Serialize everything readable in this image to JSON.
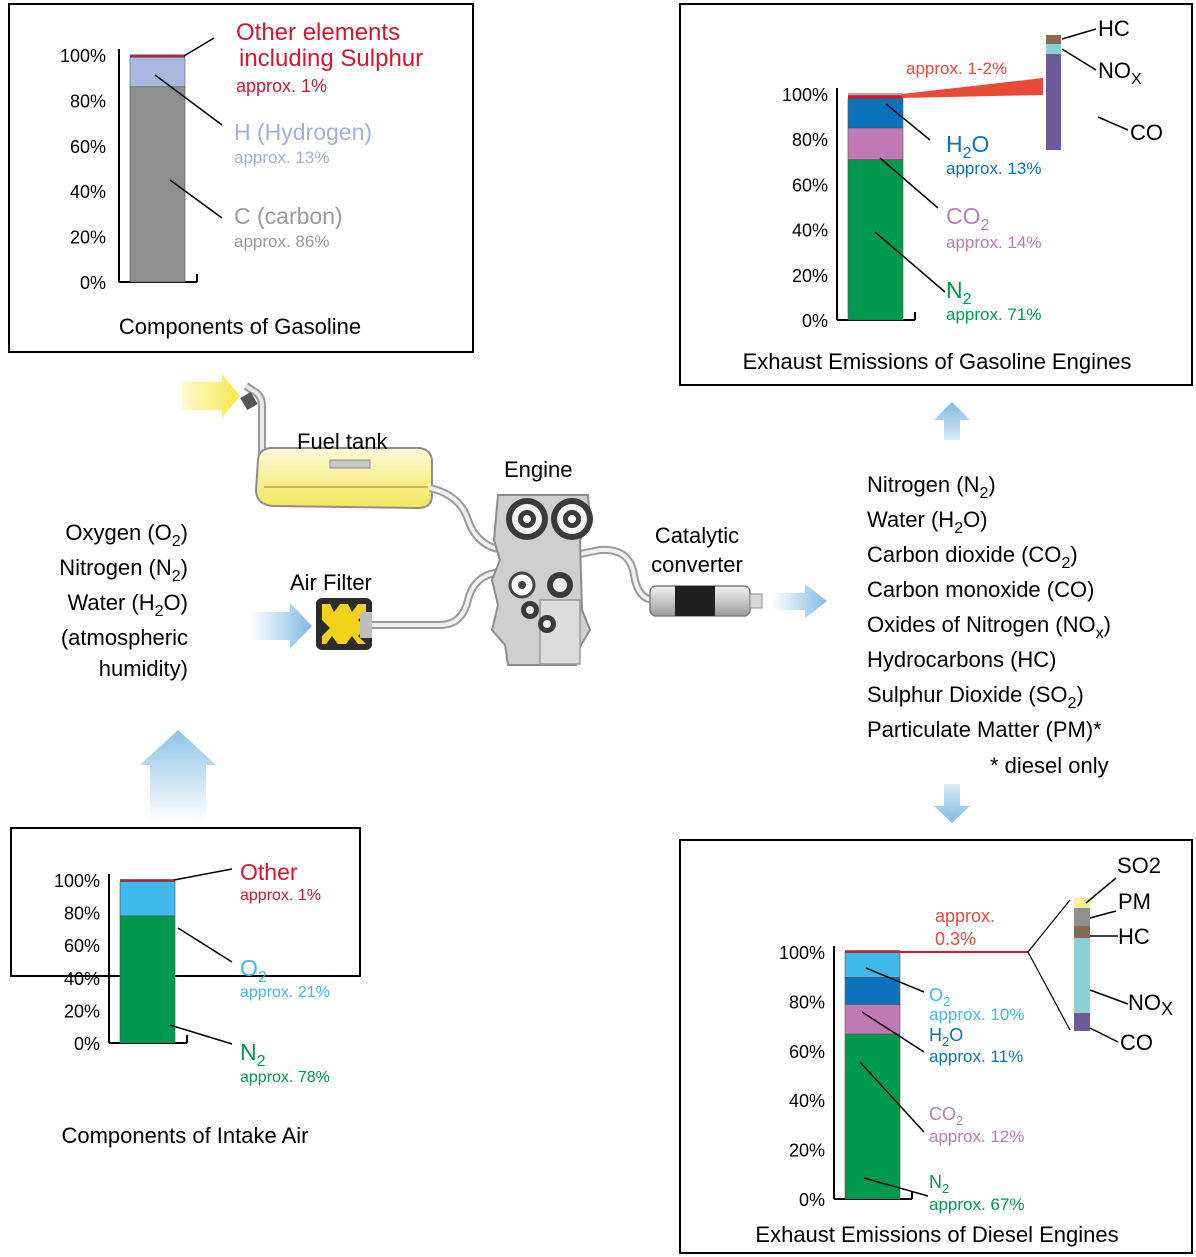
{
  "colors": {
    "carbon": "#8f8f8f",
    "hydrogen": "#a8b9e0",
    "other": "#d7152f",
    "n2": "#009a4e",
    "o2": "#3fb8ea",
    "h2o": "#0b73bb",
    "co2": "#c07ab3",
    "approx_red": "#e84a38",
    "carbon_text": "#9a9a9a",
    "hydrogen_text": "#9fb2da",
    "hc": "#8b6b4f",
    "nox": "#8ccfd4",
    "co": "#6f5a98",
    "so2": "#f6ef9a",
    "pm": "#8f8f8f",
    "arrow_blue": "#8cc3e6",
    "yellow": "#f5e84d"
  },
  "y_ticks": [
    "0%",
    "20%",
    "40%",
    "60%",
    "80%",
    "100%"
  ],
  "chart_data": [
    {
      "type": "bar",
      "title": "Components of Gasoline",
      "ylim": [
        0,
        100
      ],
      "segments": [
        {
          "label": "C (carbon)",
          "note": "approx. 86%",
          "value": 86,
          "color_key": "carbon"
        },
        {
          "label": "H (Hydrogen)",
          "note": "approx. 13%",
          "value": 13,
          "color_key": "hydrogen"
        },
        {
          "label": "Other elements including Sulphur",
          "note": "approx. 1%",
          "value": 1,
          "color_key": "other"
        }
      ]
    },
    {
      "type": "bar",
      "title": "Exhaust Emissions of Gasoline Engines",
      "ylim": [
        0,
        100
      ],
      "segments": [
        {
          "label": "N2",
          "note": "approx. 71%",
          "value": 71,
          "color_key": "n2"
        },
        {
          "label": "CO2",
          "note": "approx. 14%",
          "value": 14,
          "color_key": "co2"
        },
        {
          "label": "H2O",
          "note": "approx. 13%",
          "value": 13,
          "color_key": "h2o"
        },
        {
          "label": "approx. 1-2%",
          "value": 1.5,
          "color_key": "other"
        }
      ],
      "breakdown": [
        {
          "label": "CO",
          "color_key": "co"
        },
        {
          "label": "NOx",
          "color_key": "nox"
        },
        {
          "label": "HC",
          "color_key": "hc"
        }
      ]
    },
    {
      "type": "bar",
      "title": "Components of Intake Air",
      "ylim": [
        0,
        100
      ],
      "segments": [
        {
          "label": "N2",
          "note": "approx. 78%",
          "value": 78,
          "color_key": "n2"
        },
        {
          "label": "O2",
          "note": "approx. 21%",
          "value": 21,
          "color_key": "o2"
        },
        {
          "label": "Other",
          "note": "approx. 1%",
          "value": 1,
          "color_key": "other"
        }
      ]
    },
    {
      "type": "bar",
      "title": "Exhaust Emissions of Diesel Engines",
      "ylim": [
        0,
        100
      ],
      "segments": [
        {
          "label": "N2",
          "note": "approx. 67%",
          "value": 67,
          "color_key": "n2"
        },
        {
          "label": "CO2",
          "note": "approx. 12%",
          "value": 12,
          "color_key": "co2"
        },
        {
          "label": "H2O",
          "note": "approx. 11%",
          "value": 11,
          "color_key": "h2o"
        },
        {
          "label": "O2",
          "note": "approx. 10%",
          "value": 10,
          "color_key": "o2"
        },
        {
          "label": "approx. 0.3%",
          "value": 0.3,
          "color_key": "other"
        }
      ],
      "breakdown": [
        {
          "label": "CO",
          "color_key": "co"
        },
        {
          "label": "NOx",
          "color_key": "nox"
        },
        {
          "label": "HC",
          "color_key": "hc"
        },
        {
          "label": "PM",
          "color_key": "pm"
        },
        {
          "label": "SO2",
          "color_key": "so2"
        }
      ]
    }
  ],
  "diagram": {
    "fuel_tank": "Fuel tank",
    "engine": "Engine",
    "air_filter": "Air Filter",
    "catalytic_1": "Catalytic",
    "catalytic_2": "converter"
  },
  "intake_list": [
    "Oxygen (O2)",
    "Nitrogen (N2)",
    "Water (H2O)",
    "(atmospheric",
    "humidity)"
  ],
  "exhaust_list": [
    "Nitrogen (N2)",
    "Water (H2O)",
    "Carbon dioxide (CO2)",
    "Carbon monoxide (CO)",
    "Oxides of Nitrogen (NOx)",
    "Hydrocarbons (HC)",
    "Sulphur Dioxide (SO2)",
    "Particulate Matter (PM)*",
    "* diesel only"
  ],
  "text": {
    "g_other_1": "Other elements",
    "g_other_2": "including Sulphur",
    "g_other_note": "approx. 1%",
    "g_h": "H (Hydrogen)",
    "g_h_note": "approx. 13%",
    "g_c": "C (carbon)",
    "g_c_note": "approx. 86%",
    "ge_approx": "approx. 1-2%",
    "ge_h2o": "H",
    "ge_h2o_sub": "2",
    "ge_h2o_end": "O",
    "ge_h2o_note": "approx. 13%",
    "ge_co2": "CO",
    "ge_co2_sub": "2",
    "ge_co2_note": "approx. 14%",
    "ge_n2": "N",
    "ge_n2_sub": "2",
    "ge_n2_note": "approx. 71%",
    "ge_hc": "HC",
    "ge_nox": "NO",
    "ge_nox_sub": "X",
    "ge_co": "CO",
    "ia_other": "Other",
    "ia_other_note": "approx. 1%",
    "ia_o2": "O",
    "ia_o2_sub": "2",
    "ia_o2_note": "approx. 21%",
    "ia_n2": "N",
    "ia_n2_sub": "2",
    "ia_n2_note": "approx. 78%",
    "de_approx_1": "approx.",
    "de_approx_2": "0.3%",
    "de_o2": "O",
    "de_o2_sub": "2",
    "de_o2_note": "approx. 10%",
    "de_h2o": "H",
    "de_h2o_sub": "2",
    "de_h2o_end": "O",
    "de_h2o_note": "approx. 11%",
    "de_co2": "CO",
    "de_co2_sub": "2",
    "de_co2_note": "approx. 12%",
    "de_n2": "N",
    "de_n2_sub": "2",
    "de_n2_note": "approx. 67%",
    "de_so2": "SO",
    "de_so2_sub": "2",
    "de_pm": "PM",
    "de_hc": "HC",
    "de_nox": "NO",
    "de_nox_sub": "X",
    "de_co": "CO"
  }
}
